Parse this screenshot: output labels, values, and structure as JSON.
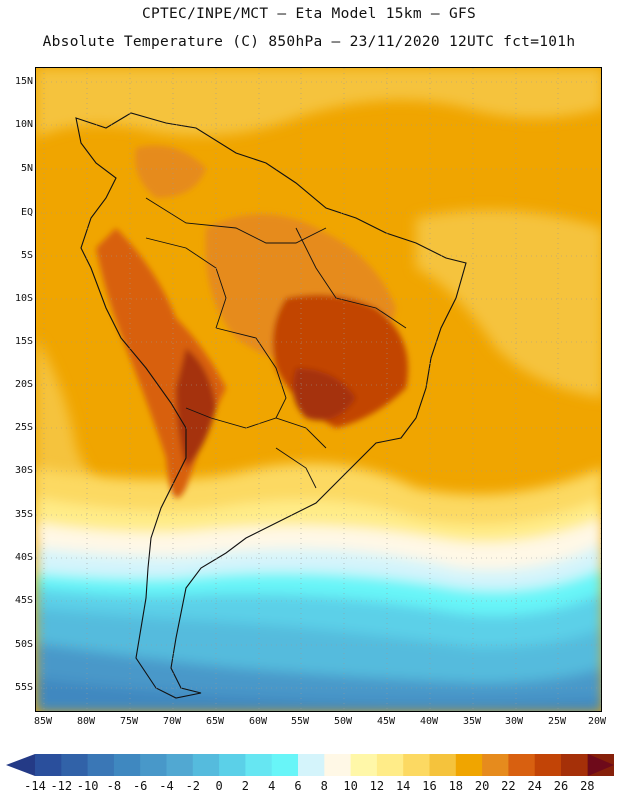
{
  "header": {
    "line1": "CPTEC/INPE/MCT –  Eta Model 15km – GFS",
    "line2": "Absolute Temperature (C) 850hPa – 23/11/2020 12UTC fct=101h"
  },
  "map": {
    "lat_labels": [
      "15N",
      "10N",
      "5N",
      "EQ",
      "5S",
      "10S",
      "15S",
      "20S",
      "25S",
      "30S",
      "35S",
      "40S",
      "45S",
      "50S",
      "55S"
    ],
    "lon_labels": [
      "85W",
      "80W",
      "75W",
      "70W",
      "65W",
      "60W",
      "55W",
      "50W",
      "45W",
      "40W",
      "35W",
      "30W",
      "25W",
      "20W"
    ]
  },
  "colorbar": {
    "labels": [
      "-14",
      "-12",
      "-10",
      "-8",
      "-6",
      "-4",
      "-2",
      "0",
      "2",
      "4",
      "6",
      "8",
      "10",
      "12",
      "14",
      "16",
      "18",
      "20",
      "22",
      "24",
      "26",
      "28"
    ],
    "colors": [
      "#2a4f9c",
      "#3162a8",
      "#3a77b6",
      "#3f88c0",
      "#4898c9",
      "#51a8d2",
      "#55bbdd",
      "#5bd0e8",
      "#66e6f2",
      "#68f5f8",
      "#d4f4fb",
      "#fff8e6",
      "#fff7a8",
      "#ffec88",
      "#fcd962",
      "#f5c33c",
      "#f0a500",
      "#e68b1d",
      "#d86010",
      "#c24406",
      "#a53008",
      "#86200a"
    ],
    "low_arrow_color": "#243a86",
    "high_arrow_color": "#6e0a1a"
  }
}
